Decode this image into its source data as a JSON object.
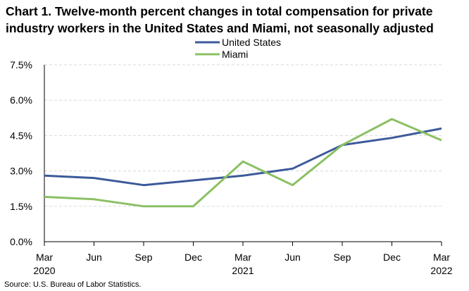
{
  "chart_data": {
    "type": "line",
    "title_lines": [
      "Chart 1. Twelve-month percent changes in total compensation for private",
      "industry workers in the United States and Miami, not seasonally adjusted"
    ],
    "categories": [
      "Mar",
      "Jun",
      "Sep",
      "Dec",
      "Mar",
      "Jun",
      "Sep",
      "Dec",
      "Mar"
    ],
    "year_labels": [
      "2020",
      "",
      "",
      "",
      "2021",
      "",
      "",
      "",
      "2022"
    ],
    "series": [
      {
        "name": "United States",
        "color": "#3C5A9A",
        "values": [
          2.8,
          2.7,
          2.4,
          2.6,
          2.8,
          3.1,
          4.1,
          4.4,
          4.8
        ]
      },
      {
        "name": "Miami",
        "color": "#8BC063",
        "values": [
          1.9,
          1.8,
          1.5,
          1.5,
          3.4,
          2.4,
          4.1,
          5.2,
          4.3
        ]
      }
    ],
    "ylim": [
      0,
      7.5
    ],
    "yticks": [
      0,
      1.5,
      3.0,
      4.5,
      6.0,
      7.5
    ],
    "ytick_labels": [
      "0.0%",
      "1.5%",
      "3.0%",
      "4.5%",
      "6.0%",
      "7.5%"
    ],
    "grid": true,
    "legend_position": "top-center",
    "xlabel": "",
    "ylabel": "",
    "source": "Source: U.S. Bureau of Labor Statistics."
  }
}
